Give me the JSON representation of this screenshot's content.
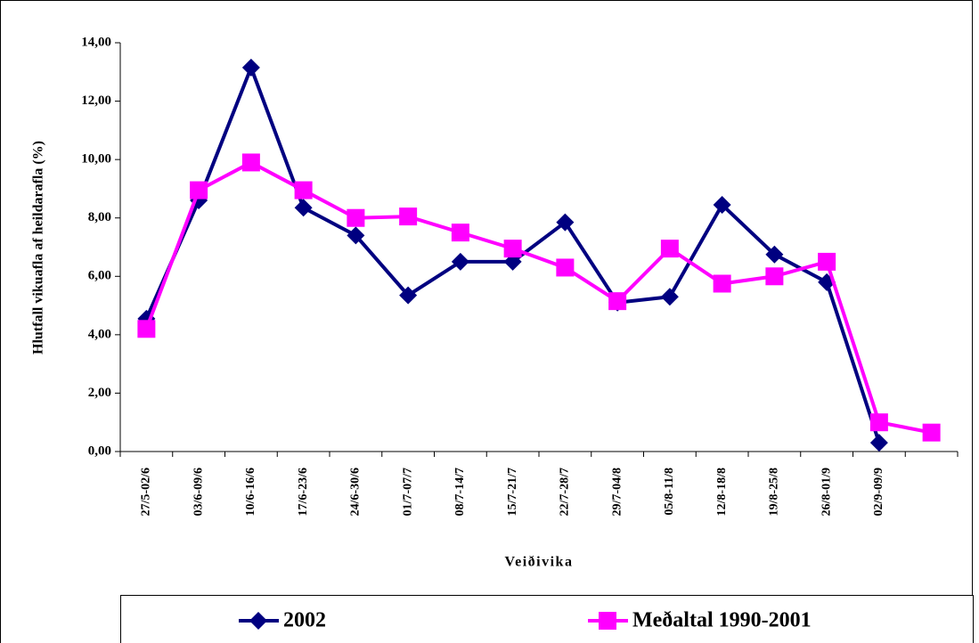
{
  "chart_data": {
    "type": "line",
    "y_label": "Hlutfall vikuafla af heildarafla (%)",
    "x_label": "Veiðivika",
    "categories": [
      "27/5-02/6",
      "03/6-09/6",
      "10/6-16/6",
      "17/6-23/6",
      "24/6-30/6",
      "01/7-07/7",
      "08/7-14/7",
      "15/7-21/7",
      "22/7-28/7",
      "29/7-04/8",
      "05/8-11/8",
      "12/8-18/8",
      "19/8-25/8",
      "26/8-01/9",
      "02/9-09/9",
      null
    ],
    "series": [
      {
        "name": "2002",
        "color": "#000080",
        "marker": "diamond",
        "values": [
          4.55,
          8.6,
          13.15,
          8.35,
          7.4,
          5.35,
          6.5,
          6.5,
          7.85,
          5.1,
          5.3,
          8.45,
          6.75,
          5.8,
          0.3,
          null
        ]
      },
      {
        "name": "Meðaltal 1990-2001",
        "color": "#ff00ff",
        "marker": "square",
        "values": [
          4.2,
          8.95,
          9.9,
          8.95,
          8.0,
          8.05,
          7.5,
          6.95,
          6.3,
          5.15,
          6.95,
          5.75,
          6.0,
          6.5,
          1.0,
          0.65
        ]
      }
    ],
    "ylim": [
      0,
      14
    ],
    "yticks": [
      {
        "value": 0,
        "label": "0,00"
      },
      {
        "value": 2,
        "label": "2,00"
      },
      {
        "value": 4,
        "label": "4,00"
      },
      {
        "value": 6,
        "label": "6,00"
      },
      {
        "value": 8,
        "label": "8,00"
      },
      {
        "value": 10,
        "label": "10,00"
      },
      {
        "value": 12,
        "label": "12,00"
      },
      {
        "value": 14,
        "label": "14,00"
      }
    ],
    "legend": "bottom"
  }
}
